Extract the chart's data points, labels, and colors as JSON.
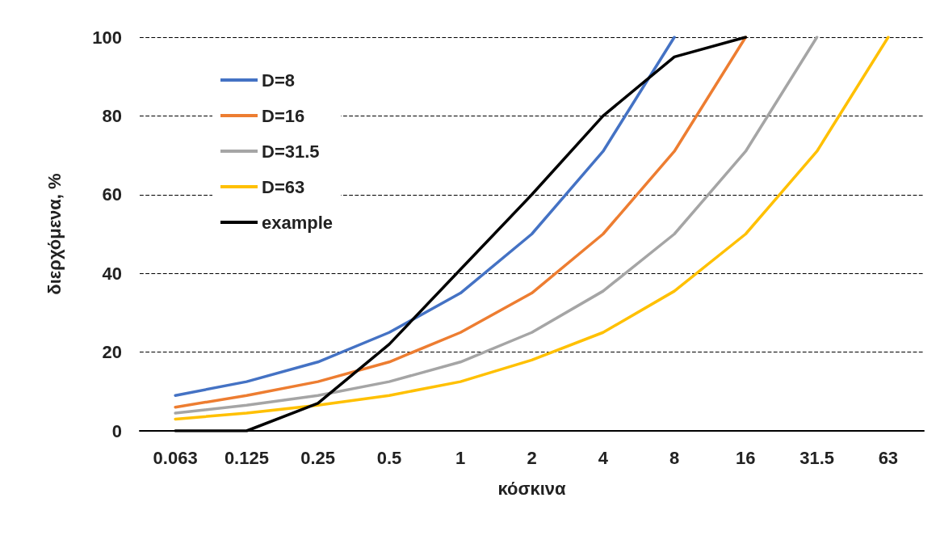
{
  "chart_data": {
    "type": "line",
    "xlabel": "κόσκινα",
    "ylabel": "διερχόμενα, %",
    "categories": [
      "0.063",
      "0.125",
      "0.25",
      "0.5",
      "1",
      "2",
      "4",
      "8",
      "16",
      "31.5",
      "63"
    ],
    "series": [
      {
        "name": "D=8",
        "color": "#4472c4",
        "values": [
          9,
          12.5,
          17.5,
          25,
          35,
          50,
          71,
          100,
          null,
          null,
          null
        ]
      },
      {
        "name": "D=16",
        "color": "#ed7d31",
        "values": [
          6,
          9,
          12.5,
          17.5,
          25,
          35,
          50,
          71,
          100,
          null,
          null
        ]
      },
      {
        "name": "D=31.5",
        "color": "#a5a5a5",
        "values": [
          4.5,
          6.5,
          9,
          12.5,
          17.5,
          25,
          35.5,
          50,
          71,
          100,
          null
        ]
      },
      {
        "name": "D=63",
        "color": "#ffc000",
        "values": [
          3,
          4.5,
          6.5,
          9,
          12.5,
          18,
          25,
          35.5,
          50,
          71,
          100
        ]
      },
      {
        "name": "example",
        "color": "#000000",
        "values": [
          0,
          0,
          7,
          22,
          41,
          60,
          80,
          95,
          100,
          null,
          null
        ]
      }
    ],
    "ylim": [
      0,
      100
    ],
    "yticks": [
      0,
      20,
      40,
      60,
      80,
      100
    ],
    "grid": "y",
    "legend": "top left",
    "marker": "none",
    "line_style": "solid"
  }
}
